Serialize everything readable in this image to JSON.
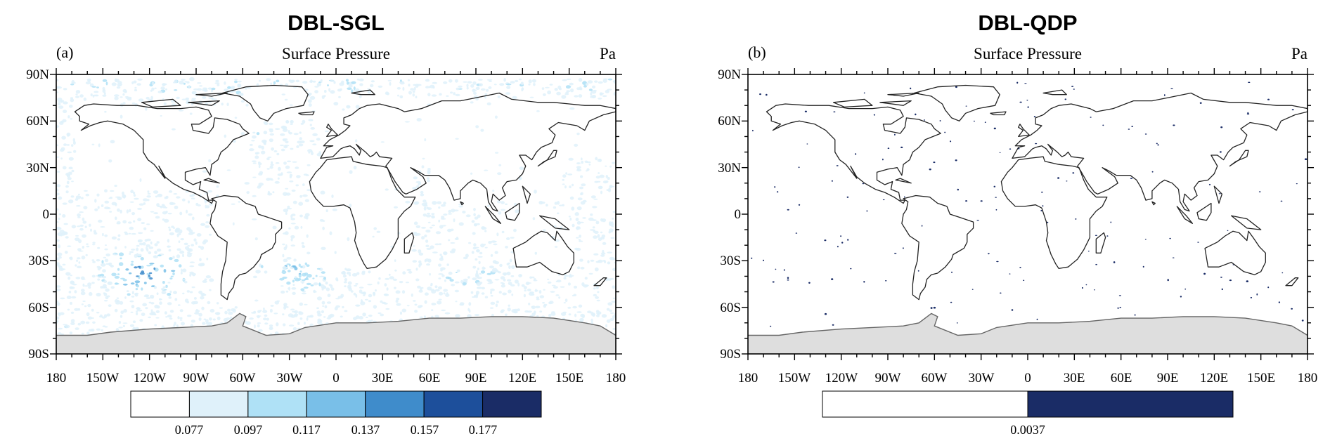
{
  "maps": [
    {
      "figure_title": "DBL-SGL",
      "panel_label": "(a)",
      "subtitle": "Surface Pressure",
      "units": "Pa",
      "lat_labels": [
        "90N",
        "60N",
        "30N",
        "0",
        "30S",
        "60S",
        "90S"
      ],
      "lon_labels": [
        "180",
        "150W",
        "120W",
        "90W",
        "60W",
        "30W",
        "0",
        "30E",
        "60E",
        "90E",
        "120E",
        "150E",
        "180"
      ],
      "colorbar": {
        "colors": [
          "#ffffff",
          "#dff1fa",
          "#afe1f6",
          "#79bfe8",
          "#3f8ccb",
          "#1d4f9b",
          "#1a2c66"
        ],
        "labels": [
          "0.077",
          "0.097",
          "0.117",
          "0.137",
          "0.157",
          "0.177"
        ]
      },
      "field_note": "Widespread light-blue speckle over oceans; strongest values in South Pacific near 35S 120W and South Atlantic near 35S 20W."
    },
    {
      "figure_title": "DBL-QDP",
      "panel_label": "(b)",
      "subtitle": "Surface Pressure",
      "units": "Pa",
      "lat_labels": [
        "90N",
        "60N",
        "30N",
        "0",
        "30S",
        "60S",
        "90S"
      ],
      "lon_labels": [
        "180",
        "150W",
        "120W",
        "90W",
        "60W",
        "30W",
        "0",
        "30E",
        "60E",
        "90E",
        "120E",
        "150E",
        "180"
      ],
      "colorbar": {
        "colors": [
          "#ffffff",
          "#1a2c66"
        ],
        "labels": [
          "0.0037"
        ]
      },
      "field_note": "Nearly all white; sparse isolated dark-navy dots."
    }
  ]
}
